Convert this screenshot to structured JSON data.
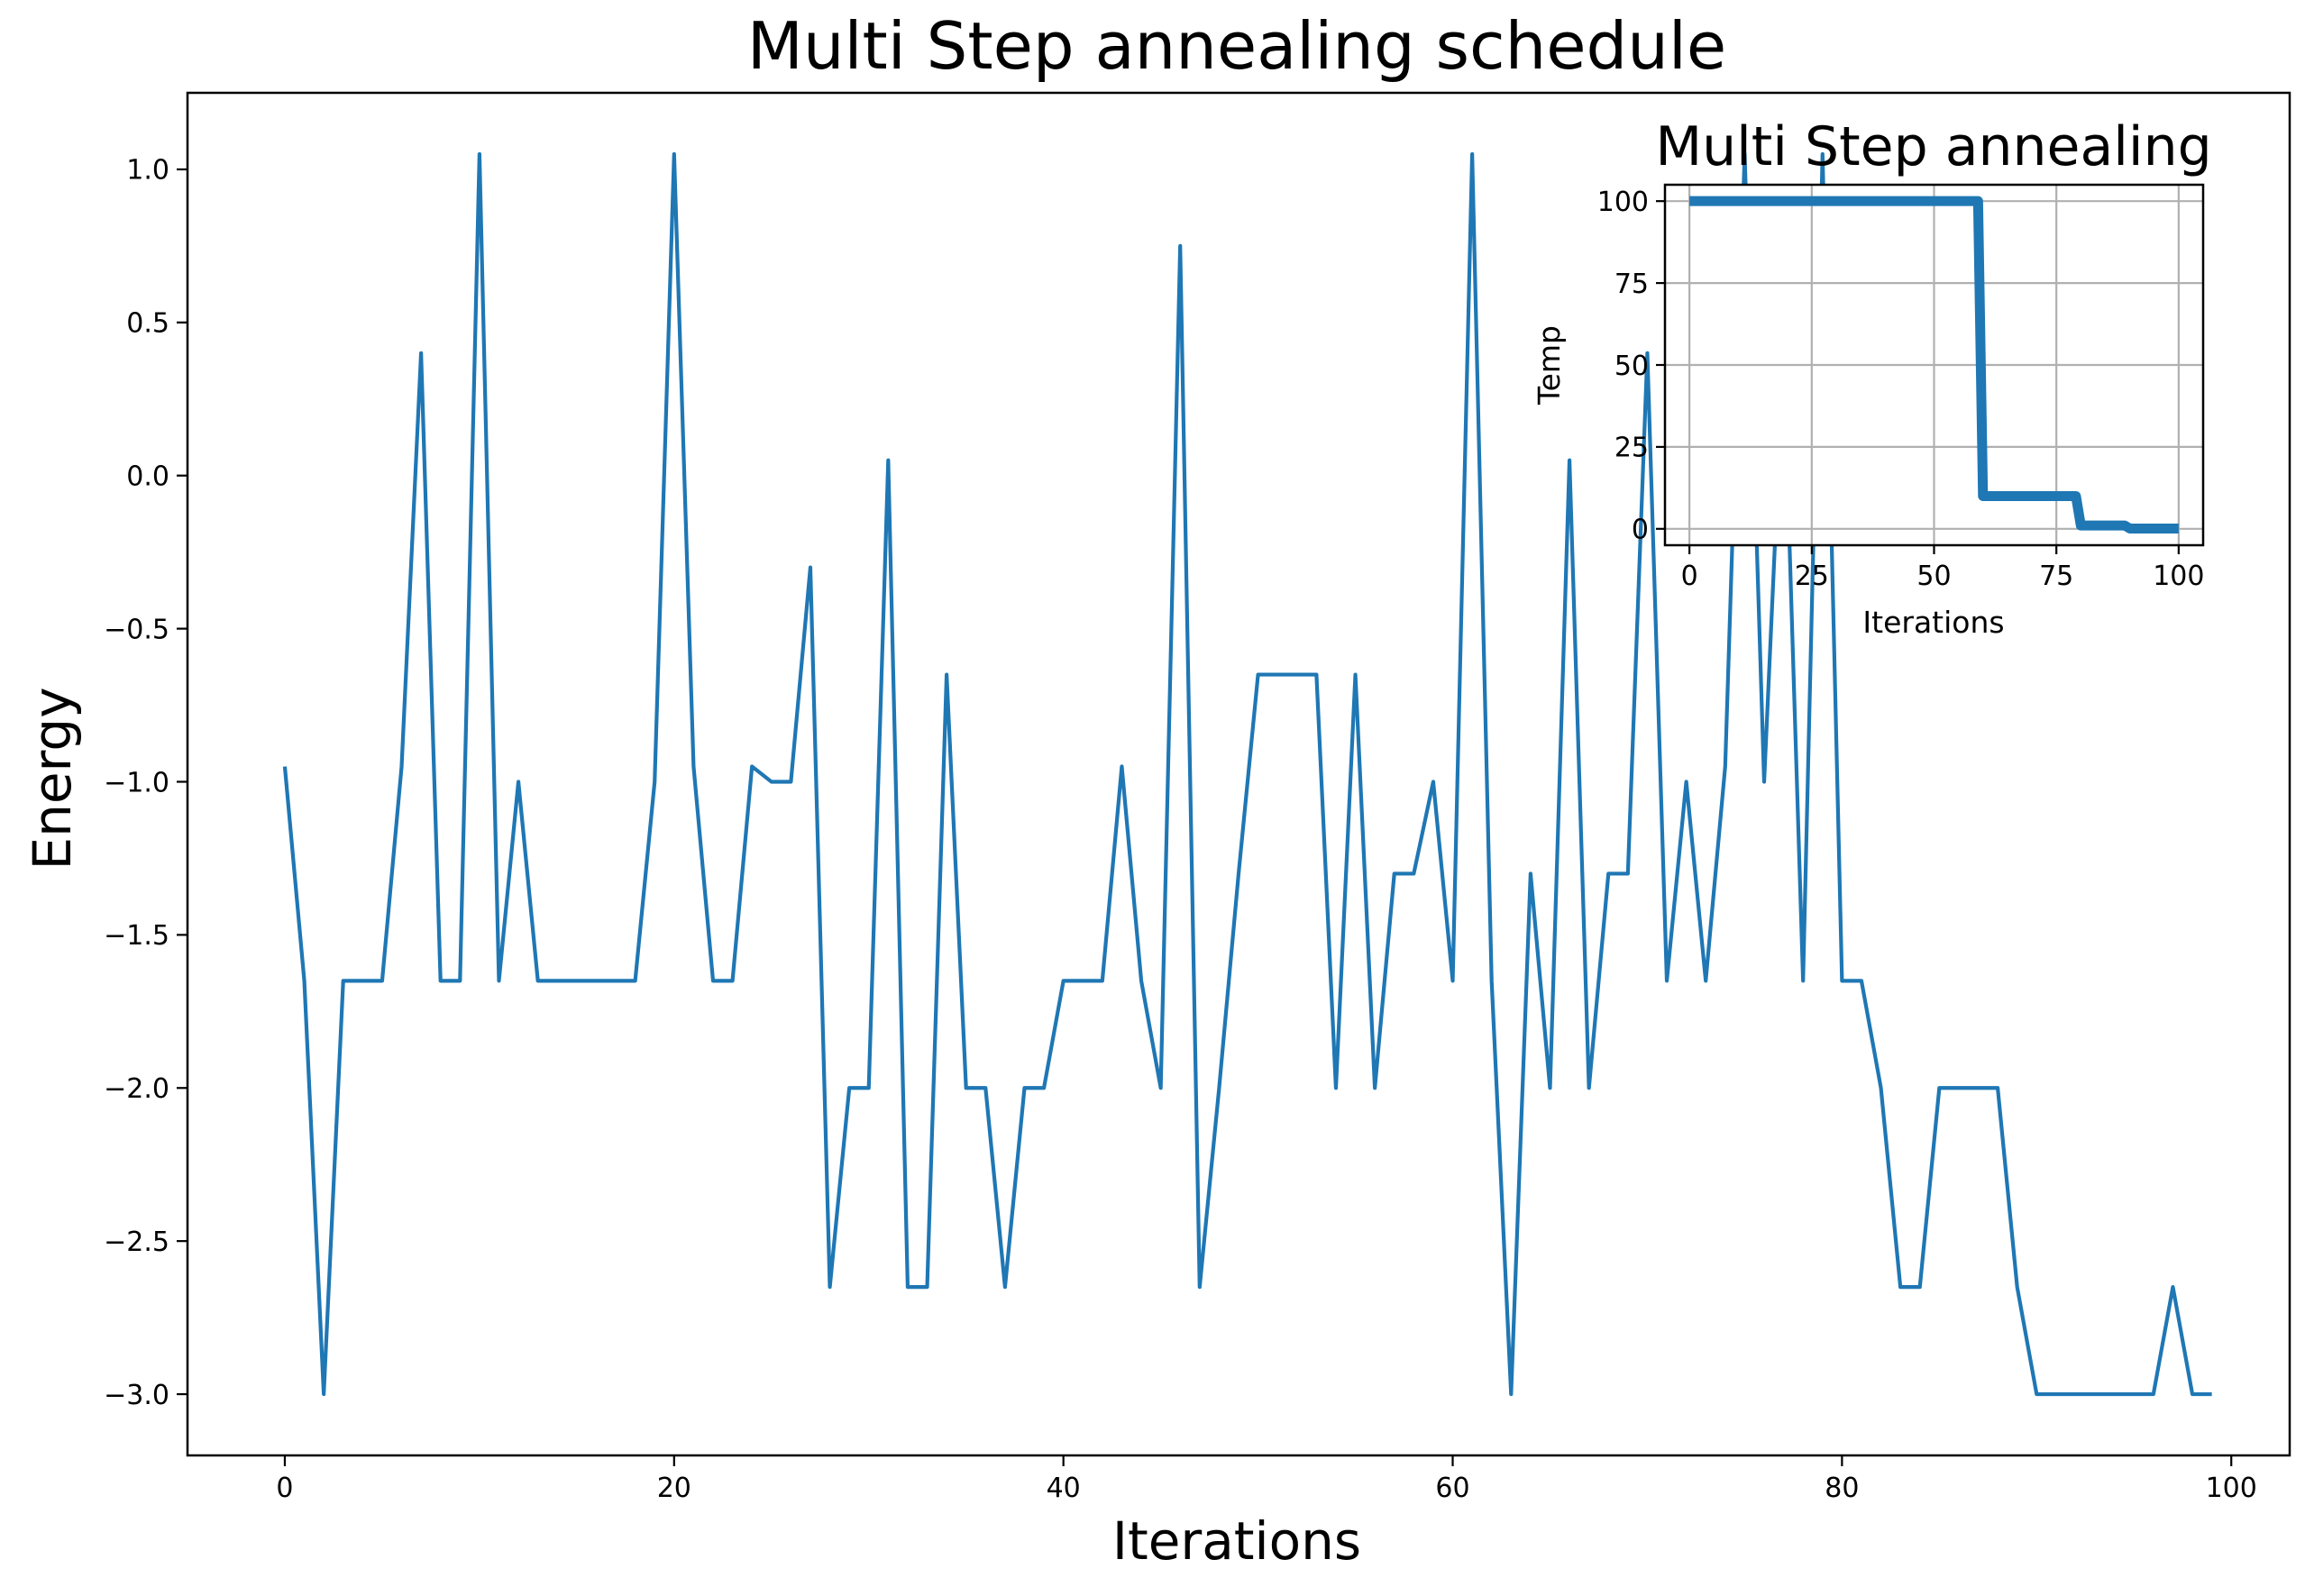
{
  "chart_data": [
    {
      "type": "line",
      "title": "Multi Step annealing schedule",
      "xlabel": "Iterations",
      "ylabel": "Energy",
      "xlim": [
        -5,
        103
      ],
      "ylim": [
        -3.2,
        1.25
      ],
      "xticks": [
        0,
        20,
        40,
        60,
        80,
        100
      ],
      "xtick_labels": [
        "0",
        "20",
        "40",
        "60",
        "80",
        "100"
      ],
      "yticks": [
        1.0,
        0.5,
        0.0,
        -0.5,
        -1.0,
        -1.5,
        -2.0,
        -2.5,
        -3.0
      ],
      "ytick_labels": [
        "1.0",
        "0.5",
        "0.0",
        "−0.5",
        "−1.0",
        "−1.5",
        "−2.0",
        "−2.5",
        "−3.0"
      ],
      "grid": false,
      "line_color": "#1f77b4",
      "series": [
        {
          "x": [
            0,
            1,
            2,
            3,
            4,
            5,
            6,
            7,
            8,
            9,
            10,
            11,
            12,
            13,
            14,
            15,
            16,
            17,
            18,
            19,
            20,
            21,
            22,
            23,
            24,
            25,
            26,
            27,
            28,
            29,
            30,
            31,
            32,
            33,
            34,
            35,
            36,
            37,
            38,
            39,
            40,
            41,
            42,
            43,
            44,
            45,
            46,
            47,
            48,
            49,
            50,
            51,
            52,
            53,
            54,
            55,
            56,
            57,
            58,
            59,
            60,
            61,
            62,
            63,
            64,
            65,
            66,
            67,
            68,
            69,
            70,
            71,
            72,
            73,
            74,
            75,
            76,
            77,
            78,
            79,
            80,
            81,
            82,
            83,
            84,
            85,
            86,
            87,
            88,
            89,
            90,
            91,
            92,
            93,
            94,
            95,
            96,
            97,
            98,
            99
          ],
          "y": [
            -0.95,
            -1.65,
            -3.0,
            -1.65,
            -1.65,
            -1.65,
            -0.95,
            0.4,
            -1.65,
            -1.65,
            1.05,
            -1.65,
            -1.0,
            -1.65,
            -1.65,
            -1.65,
            -1.65,
            -1.65,
            -1.65,
            -1.0,
            1.05,
            -0.95,
            -1.65,
            -1.65,
            -0.95,
            -1.0,
            -1.0,
            -0.3,
            -2.65,
            -2.0,
            -2.0,
            0.05,
            -2.65,
            -2.65,
            -0.65,
            -2.0,
            -2.0,
            -2.65,
            -2.0,
            -2.0,
            -1.65,
            -1.65,
            -1.65,
            -0.95,
            -1.65,
            -2.0,
            0.75,
            -2.65,
            -2.0,
            -1.3,
            -0.65,
            -0.65,
            -0.65,
            -0.65,
            -2.0,
            -0.65,
            -2.0,
            -1.3,
            -1.3,
            -1.0,
            -1.65,
            1.05,
            -1.65,
            -3.0,
            -1.3,
            -2.0,
            0.05,
            -2.0,
            -1.3,
            -1.3,
            0.4,
            -1.65,
            -1.0,
            -1.65,
            -0.95,
            1.05,
            -1.0,
            0.4,
            -1.65,
            1.05,
            -1.65,
            -1.65,
            -2.0,
            -2.65,
            -2.65,
            -2.0,
            -2.0,
            -2.0,
            -2.0,
            -2.65,
            -3.0,
            -3.0,
            -3.0,
            -3.0,
            -3.0,
            -3.0,
            -3.0,
            -2.65,
            -3.0,
            -3.0
          ]
        }
      ]
    },
    {
      "type": "line",
      "title": "Multi Step annealing",
      "xlabel": "Iterations",
      "ylabel": "Temp",
      "xlim": [
        -5,
        105
      ],
      "ylim": [
        -5,
        105
      ],
      "xticks": [
        0,
        25,
        50,
        75,
        100
      ],
      "xtick_labels": [
        "0",
        "25",
        "50",
        "75",
        "100"
      ],
      "yticks": [
        0,
        25,
        50,
        75,
        100
      ],
      "ytick_labels": [
        "0",
        "25",
        "50",
        "75",
        "100"
      ],
      "grid": true,
      "line_color": "#1f77b4",
      "series": [
        {
          "x": [
            0,
            59,
            60,
            79,
            80,
            89,
            90,
            100
          ],
          "y": [
            100,
            100,
            10,
            10,
            1,
            1,
            0.1,
            0.1
          ]
        }
      ]
    }
  ]
}
